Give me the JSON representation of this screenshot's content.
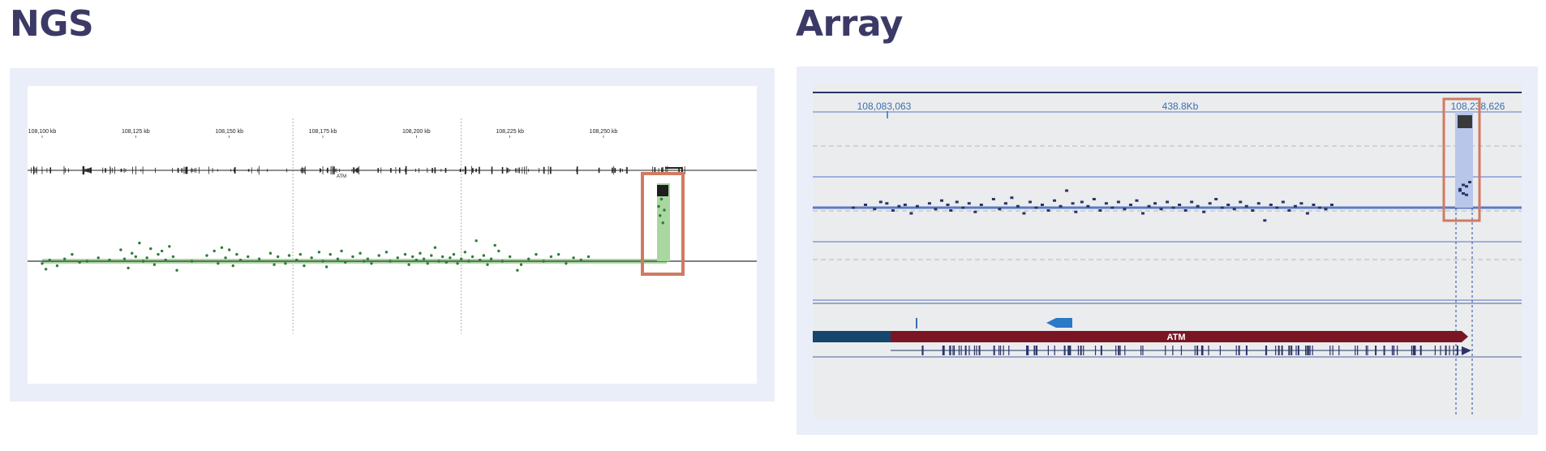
{
  "panels": {
    "ngs": {
      "title": "NGS"
    },
    "array": {
      "title": "Array"
    }
  },
  "colors": {
    "title": "#3b3a66",
    "frame": "#eaeef8",
    "highlight_box": "#d07a62",
    "ngs_points": "#2e7d3a",
    "ngs_band": "#a8d8a0",
    "array_points": "#2a3466",
    "array_baseline": "#5b7ac4",
    "atm_bar": "#7a1624"
  },
  "chart_data": [
    {
      "panel": "NGS",
      "type": "scatter",
      "x_unit": "kb",
      "x_ticks": [
        "108,100 kb",
        "108,125 kb",
        "108,150 kb",
        "108,175 kb",
        "108,200 kb",
        "108,225 kb",
        "108,250 kb"
      ],
      "x_tick_values": [
        108100,
        108125,
        108150,
        108175,
        108200,
        108225,
        108250
      ],
      "xlim": [
        108095,
        108252
      ],
      "gene": "ATM",
      "gene_span_kb": [
        108095,
        108237
      ],
      "grid": "vertical dashed lines at 108,167 kb and 108,212 kb",
      "series": [
        {
          "values": [
            [
              108100,
              -0.1
            ],
            [
              108101,
              -0.35
            ],
            [
              108102,
              0.05
            ],
            [
              108104,
              -0.2
            ],
            [
              108106,
              0.1
            ],
            [
              108108,
              0.3
            ],
            [
              108110,
              -0.05
            ],
            [
              108112,
              0.0
            ],
            [
              108115,
              0.15
            ],
            [
              108118,
              0.05
            ],
            [
              108121,
              0.5
            ],
            [
              108122,
              0.1
            ],
            [
              108123,
              -0.3
            ],
            [
              108124,
              0.35
            ],
            [
              108125,
              0.2
            ],
            [
              108126,
              0.8
            ],
            [
              108127,
              0.0
            ],
            [
              108128,
              0.15
            ],
            [
              108129,
              0.55
            ],
            [
              108130,
              -0.15
            ],
            [
              108131,
              0.3
            ],
            [
              108132,
              0.45
            ],
            [
              108133,
              0.05
            ],
            [
              108134,
              0.65
            ],
            [
              108135,
              0.2
            ],
            [
              108136,
              -0.4
            ],
            [
              108140,
              0.0
            ],
            [
              108144,
              0.25
            ],
            [
              108146,
              0.45
            ],
            [
              108147,
              -0.1
            ],
            [
              108148,
              0.6
            ],
            [
              108149,
              0.15
            ],
            [
              108150,
              0.5
            ],
            [
              108151,
              -0.2
            ],
            [
              108152,
              0.3
            ],
            [
              108153,
              0.05
            ],
            [
              108155,
              0.2
            ],
            [
              108158,
              0.1
            ],
            [
              108161,
              0.35
            ],
            [
              108162,
              -0.15
            ],
            [
              108163,
              0.2
            ],
            [
              108165,
              -0.1
            ],
            [
              108166,
              0.25
            ],
            [
              108168,
              0.05
            ],
            [
              108169,
              0.3
            ],
            [
              108170,
              -0.2
            ],
            [
              108172,
              0.15
            ],
            [
              108174,
              0.4
            ],
            [
              108175,
              0.0
            ],
            [
              108176,
              -0.25
            ],
            [
              108177,
              0.3
            ],
            [
              108179,
              0.1
            ],
            [
              108180,
              0.45
            ],
            [
              108181,
              -0.05
            ],
            [
              108183,
              0.2
            ],
            [
              108185,
              0.35
            ],
            [
              108186,
              0.0
            ],
            [
              108187,
              0.1
            ],
            [
              108188,
              -0.1
            ],
            [
              108190,
              0.25
            ],
            [
              108192,
              0.4
            ],
            [
              108193,
              0.0
            ],
            [
              108195,
              0.15
            ],
            [
              108197,
              0.3
            ],
            [
              108198,
              -0.15
            ],
            [
              108199,
              0.2
            ],
            [
              108200,
              0.05
            ],
            [
              108201,
              0.35
            ],
            [
              108202,
              0.1
            ],
            [
              108203,
              -0.1
            ],
            [
              108204,
              0.25
            ],
            [
              108205,
              0.6
            ],
            [
              108206,
              0.0
            ],
            [
              108207,
              0.2
            ],
            [
              108208,
              -0.05
            ],
            [
              108209,
              0.15
            ],
            [
              108210,
              0.3
            ],
            [
              108211,
              -0.1
            ],
            [
              108212,
              0.1
            ],
            [
              108213,
              0.4
            ],
            [
              108214,
              0.0
            ],
            [
              108215,
              0.2
            ],
            [
              108216,
              0.9
            ],
            [
              108217,
              0.05
            ],
            [
              108218,
              0.25
            ],
            [
              108219,
              -0.15
            ],
            [
              108220,
              0.1
            ],
            [
              108221,
              0.7
            ],
            [
              108222,
              0.45
            ],
            [
              108223,
              0.0
            ],
            [
              108225,
              0.2
            ],
            [
              108227,
              -0.4
            ],
            [
              108228,
              -0.15
            ],
            [
              108230,
              0.1
            ],
            [
              108232,
              0.3
            ],
            [
              108234,
              0.0
            ],
            [
              108236,
              0.2
            ],
            [
              108238,
              0.3
            ],
            [
              108240,
              -0.1
            ],
            [
              108242,
              0.15
            ],
            [
              108244,
              0.05
            ],
            [
              108246,
              0.2
            ]
          ]
        },
        {
          "values": [
            [
              108253,
              1.5
            ],
            [
              108253.5,
              1.25
            ],
            [
              108254,
              1.7
            ],
            [
              108254.5,
              1.05
            ],
            [
              108255,
              1.4
            ]
          ]
        }
      ],
      "highlight": {
        "region_kb": [
          108251,
          108256
        ],
        "label": ""
      }
    },
    {
      "panel": "Array",
      "type": "scatter",
      "x_ticks": [
        "108,083,063",
        "438.8Kb",
        "108,238,626"
      ],
      "x_tick_values": [
        108083063,
        108160845,
        108238626
      ],
      "xlim": [
        108038000,
        108260000
      ],
      "gene": "ATM",
      "series": [
        {
          "values": [
            [
              108048000,
              0.0
            ],
            [
              108052000,
              0.1
            ],
            [
              108055000,
              -0.05
            ],
            [
              108057000,
              0.2
            ],
            [
              108059000,
              0.15
            ],
            [
              108061000,
              -0.1
            ],
            [
              108063000,
              0.05
            ],
            [
              108065000,
              0.1
            ],
            [
              108067000,
              -0.2
            ],
            [
              108069000,
              0.05
            ],
            [
              108073000,
              0.15
            ],
            [
              108075000,
              -0.05
            ],
            [
              108077000,
              0.25
            ],
            [
              108079000,
              0.1
            ],
            [
              108080000,
              -0.1
            ],
            [
              108082000,
              0.2
            ],
            [
              108084000,
              0.0
            ],
            [
              108086000,
              0.15
            ],
            [
              108088000,
              -0.15
            ],
            [
              108090000,
              0.1
            ],
            [
              108094000,
              0.3
            ],
            [
              108096000,
              -0.05
            ],
            [
              108098000,
              0.15
            ],
            [
              108100000,
              0.35
            ],
            [
              108102000,
              0.05
            ],
            [
              108104000,
              -0.2
            ],
            [
              108106000,
              0.2
            ],
            [
              108108000,
              0.0
            ],
            [
              108110000,
              0.1
            ],
            [
              108112000,
              -0.1
            ],
            [
              108114000,
              0.25
            ],
            [
              108116000,
              0.05
            ],
            [
              108118000,
              0.6
            ],
            [
              108120000,
              0.15
            ],
            [
              108121000,
              -0.15
            ],
            [
              108123000,
              0.2
            ],
            [
              108125000,
              0.05
            ],
            [
              108127000,
              0.3
            ],
            [
              108129000,
              -0.1
            ],
            [
              108131000,
              0.15
            ],
            [
              108133000,
              0.0
            ],
            [
              108135000,
              0.2
            ],
            [
              108137000,
              -0.05
            ],
            [
              108139000,
              0.1
            ],
            [
              108141000,
              0.25
            ],
            [
              108143000,
              -0.2
            ],
            [
              108145000,
              0.05
            ],
            [
              108147000,
              0.15
            ],
            [
              108149000,
              -0.05
            ],
            [
              108151000,
              0.2
            ],
            [
              108153000,
              0.0
            ],
            [
              108155000,
              0.1
            ],
            [
              108157000,
              -0.1
            ],
            [
              108159000,
              0.2
            ],
            [
              108161000,
              0.05
            ],
            [
              108163000,
              -0.15
            ],
            [
              108165000,
              0.15
            ],
            [
              108167000,
              0.3
            ],
            [
              108169000,
              0.0
            ],
            [
              108171000,
              0.1
            ],
            [
              108173000,
              -0.05
            ],
            [
              108175000,
              0.2
            ],
            [
              108177000,
              0.05
            ],
            [
              108179000,
              -0.1
            ],
            [
              108181000,
              0.15
            ],
            [
              108183000,
              -0.45
            ],
            [
              108185000,
              0.1
            ],
            [
              108187000,
              0.0
            ],
            [
              108189000,
              0.2
            ],
            [
              108191000,
              -0.1
            ],
            [
              108193000,
              0.05
            ],
            [
              108195000,
              0.15
            ],
            [
              108197000,
              -0.2
            ],
            [
              108199000,
              0.1
            ],
            [
              108201000,
              0.0
            ],
            [
              108203000,
              -0.05
            ],
            [
              108205000,
              0.1
            ]
          ]
        },
        {
          "values": [
            [
              108237000,
              0.7
            ],
            [
              108238000,
              0.9
            ],
            [
              108239000,
              0.55
            ],
            [
              108240000,
              1.0
            ],
            [
              108241000,
              0.75
            ],
            [
              108242000,
              0.6
            ],
            [
              108243000,
              0.85
            ]
          ]
        }
      ],
      "highlight": {
        "region": [
          108236000,
          108244000
        ],
        "label": ""
      }
    }
  ]
}
